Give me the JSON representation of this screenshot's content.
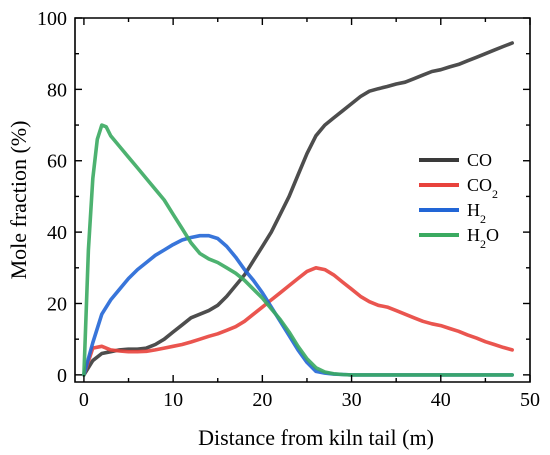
{
  "chart_data": {
    "type": "line",
    "xlabel": "Distance from kiln tail (m)",
    "ylabel": "Mole fraction (%)",
    "xlim": [
      -1,
      50
    ],
    "ylim": [
      -2,
      100
    ],
    "xticks": [
      0,
      10,
      20,
      30,
      40,
      50
    ],
    "yticks": [
      0,
      20,
      40,
      60,
      80,
      100
    ],
    "legend_position": "right-center",
    "grid": false,
    "series": [
      {
        "name": "CO",
        "label_main": "CO",
        "label_sub": "",
        "color": "#3a3a3a",
        "x": [
          0,
          1,
          2,
          3,
          4,
          5,
          6,
          7,
          8,
          9,
          10,
          11,
          12,
          13,
          14,
          15,
          16,
          17,
          18,
          19,
          20,
          21,
          22,
          23,
          24,
          25,
          26,
          27,
          28,
          29,
          30,
          31,
          32,
          33,
          34,
          35,
          36,
          37,
          38,
          39,
          40,
          41,
          42,
          43,
          44,
          45,
          46,
          47,
          48
        ],
        "y": [
          0,
          4,
          6,
          6.5,
          7,
          7.2,
          7.2,
          7.5,
          8.5,
          10,
          12,
          14,
          16,
          17,
          18,
          19.5,
          22,
          25,
          28,
          32,
          36,
          40,
          45,
          50,
          56,
          62,
          67,
          70,
          72,
          74,
          76,
          78,
          79.5,
          80.2,
          80.8,
          81.5,
          82,
          83,
          84,
          85,
          85.5,
          86.3,
          87,
          88,
          89,
          90,
          91,
          92,
          93
        ]
      },
      {
        "name": "CO2",
        "label_main": "CO",
        "label_sub": "2",
        "color": "#e8423c",
        "x": [
          0,
          1,
          2,
          3,
          4,
          5,
          6,
          7,
          8,
          9,
          10,
          11,
          12,
          13,
          14,
          15,
          16,
          17,
          18,
          19,
          20,
          21,
          22,
          23,
          24,
          25,
          26,
          27,
          28,
          29,
          30,
          31,
          32,
          33,
          34,
          35,
          36,
          37,
          38,
          39,
          40,
          41,
          42,
          43,
          44,
          45,
          46,
          47,
          48
        ],
        "y": [
          0,
          7.5,
          8,
          7,
          6.7,
          6.5,
          6.5,
          6.6,
          7,
          7.5,
          8,
          8.5,
          9.2,
          10,
          10.8,
          11.5,
          12.5,
          13.5,
          15,
          17,
          19,
          21,
          23,
          25,
          27,
          29,
          30,
          29.5,
          28,
          26,
          24,
          22,
          20.5,
          19.5,
          19,
          18,
          17,
          16,
          15,
          14.3,
          13.8,
          13,
          12.2,
          11.2,
          10.3,
          9.3,
          8.5,
          7.7,
          7
        ]
      },
      {
        "name": "H2",
        "label_main": "H",
        "label_sub": "2",
        "color": "#2266d6",
        "x": [
          0,
          1,
          2,
          3,
          4,
          5,
          6,
          7,
          8,
          9,
          10,
          11,
          12,
          13,
          14,
          15,
          16,
          17,
          18,
          19,
          20,
          21,
          22,
          23,
          24,
          25,
          26,
          27,
          28,
          29,
          30,
          35,
          40,
          45,
          48
        ],
        "y": [
          0,
          9,
          17,
          21,
          24,
          27,
          29.5,
          31.5,
          33.5,
          35,
          36.5,
          37.8,
          38.5,
          39,
          39,
          38.2,
          36,
          33,
          29.5,
          26.5,
          23,
          19,
          15,
          11,
          7,
          3.5,
          1,
          0.5,
          0.2,
          0.1,
          0,
          0,
          0,
          0,
          0
        ]
      },
      {
        "name": "H2O",
        "label_main": "H",
        "label_sub": "2",
        "label_tail": "O",
        "color": "#3aaa60",
        "x": [
          0,
          0.5,
          1,
          1.5,
          2,
          2.5,
          3,
          4,
          5,
          6,
          7,
          8,
          9,
          10,
          11,
          12,
          13,
          14,
          15,
          16,
          17,
          18,
          19,
          20,
          21,
          22,
          23,
          24,
          25,
          26,
          27,
          28,
          29,
          30,
          35,
          40,
          45,
          48
        ],
        "y": [
          0,
          35,
          55,
          66,
          70,
          69.5,
          67,
          64,
          61,
          58,
          55,
          52,
          49,
          45,
          41,
          37,
          34,
          32.5,
          31.5,
          30,
          28.5,
          26.5,
          24,
          21.5,
          18.5,
          15.5,
          12,
          8,
          4.5,
          2,
          0.8,
          0.3,
          0.1,
          0,
          0,
          0,
          0,
          0
        ]
      }
    ]
  }
}
